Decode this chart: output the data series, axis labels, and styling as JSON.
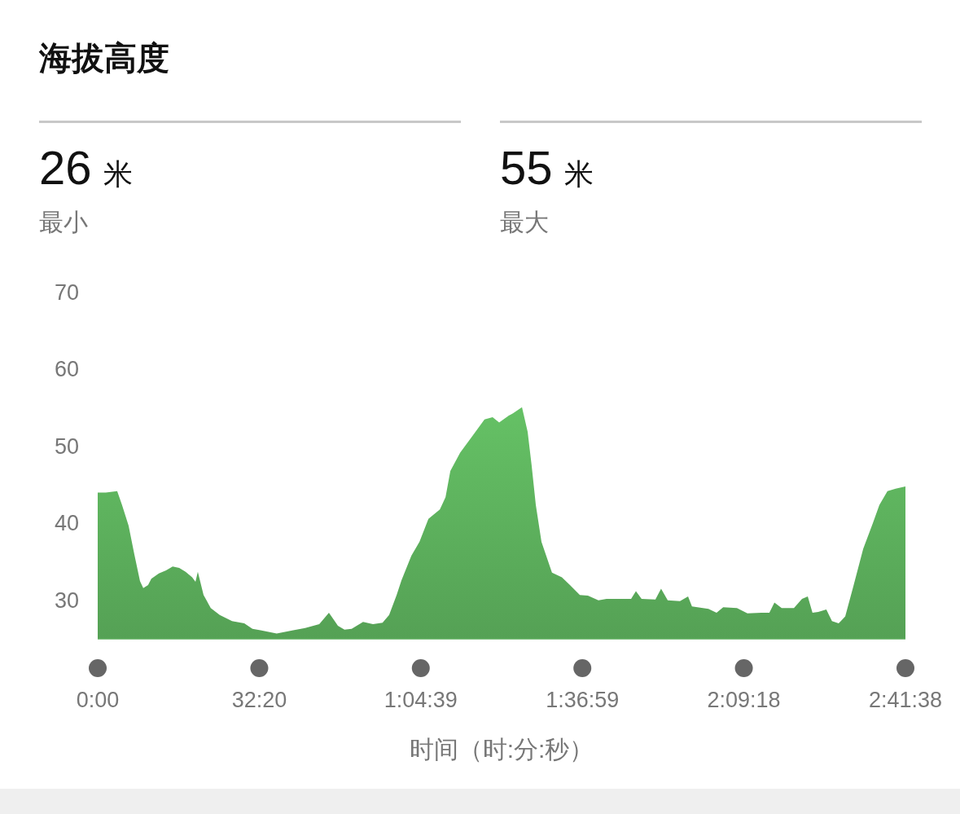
{
  "chart_data": {
    "type": "area",
    "title": "海拔高度",
    "xlabel": "时间（时:分:秒）",
    "annotations": [
      "26 米",
      "最小",
      "55 米",
      "最大"
    ],
    "xlim": [
      0,
      9698
    ],
    "ylim": [
      25,
      70
    ],
    "yticks": [
      30,
      40,
      50,
      60,
      70
    ],
    "xticks": [
      {
        "value": 0,
        "label": "0:00"
      },
      {
        "value": 1940,
        "label": "32:20"
      },
      {
        "value": 3879,
        "label": "1:04:39"
      },
      {
        "value": 5819,
        "label": "1:36:59"
      },
      {
        "value": 7758,
        "label": "2:09:18"
      },
      {
        "value": 9698,
        "label": "2:41:38"
      }
    ],
    "grid": false,
    "x": [
      0,
      97,
      234,
      292,
      371,
      439,
      508,
      547,
      605,
      644,
      734,
      821,
      900,
      979,
      1055,
      1134,
      1174,
      1202,
      1271,
      1357,
      1465,
      1613,
      1760,
      1858,
      1955,
      2149,
      2347,
      2491,
      2660,
      2776,
      2884,
      2963,
      3049,
      3186,
      3305,
      3420,
      3499,
      3589,
      3647,
      3766,
      3863,
      3971,
      4108,
      4176,
      4234,
      4352,
      4496,
      4644,
      4741,
      4820,
      4936,
      4986,
      5094,
      5162,
      5209,
      5260,
      5328,
      5454,
      5573,
      5670,
      5789,
      5886,
      6012,
      6109,
      6257,
      6404,
      6462,
      6530,
      6696,
      6764,
      6844,
      6991,
      7088,
      7135,
      7333,
      7430,
      7510,
      7675,
      7801,
      7967,
      8064,
      8125,
      8212,
      8359,
      8456,
      8525,
      8582,
      8651,
      8748,
      8816,
      8896,
      8975,
      9072,
      9191,
      9306,
      9385,
      9482,
      9580,
      9698
    ],
    "series": [
      {
        "color": "#5bad5b",
        "values": [
          44.0,
          44.0,
          44.2,
          42.4,
          39.7,
          36.0,
          32.5,
          31.6,
          32.0,
          32.8,
          33.5,
          33.9,
          34.4,
          34.2,
          33.7,
          33.0,
          32.4,
          33.7,
          30.7,
          29.0,
          28.1,
          27.3,
          27.0,
          26.3,
          26.1,
          25.7,
          26.1,
          26.4,
          26.9,
          28.4,
          26.7,
          26.2,
          26.3,
          27.2,
          26.9,
          27.1,
          28.1,
          30.7,
          32.6,
          35.8,
          37.6,
          40.6,
          41.8,
          43.4,
          46.8,
          49.2,
          51.3,
          53.5,
          53.8,
          53.1,
          54.0,
          54.3,
          55.1,
          51.9,
          47.6,
          42.4,
          37.6,
          33.6,
          33.0,
          32.0,
          30.7,
          30.6,
          30.0,
          30.2,
          30.2,
          30.2,
          31.2,
          30.2,
          30.1,
          31.5,
          30.0,
          29.9,
          30.5,
          29.2,
          28.9,
          28.4,
          29.1,
          29.0,
          28.3,
          28.4,
          28.4,
          29.7,
          29.0,
          29.0,
          30.2,
          30.5,
          28.4,
          28.5,
          28.8,
          27.3,
          27.0,
          27.9,
          31.8,
          36.7,
          40.0,
          42.4,
          44.2,
          44.5,
          44.8
        ]
      }
    ]
  }
}
